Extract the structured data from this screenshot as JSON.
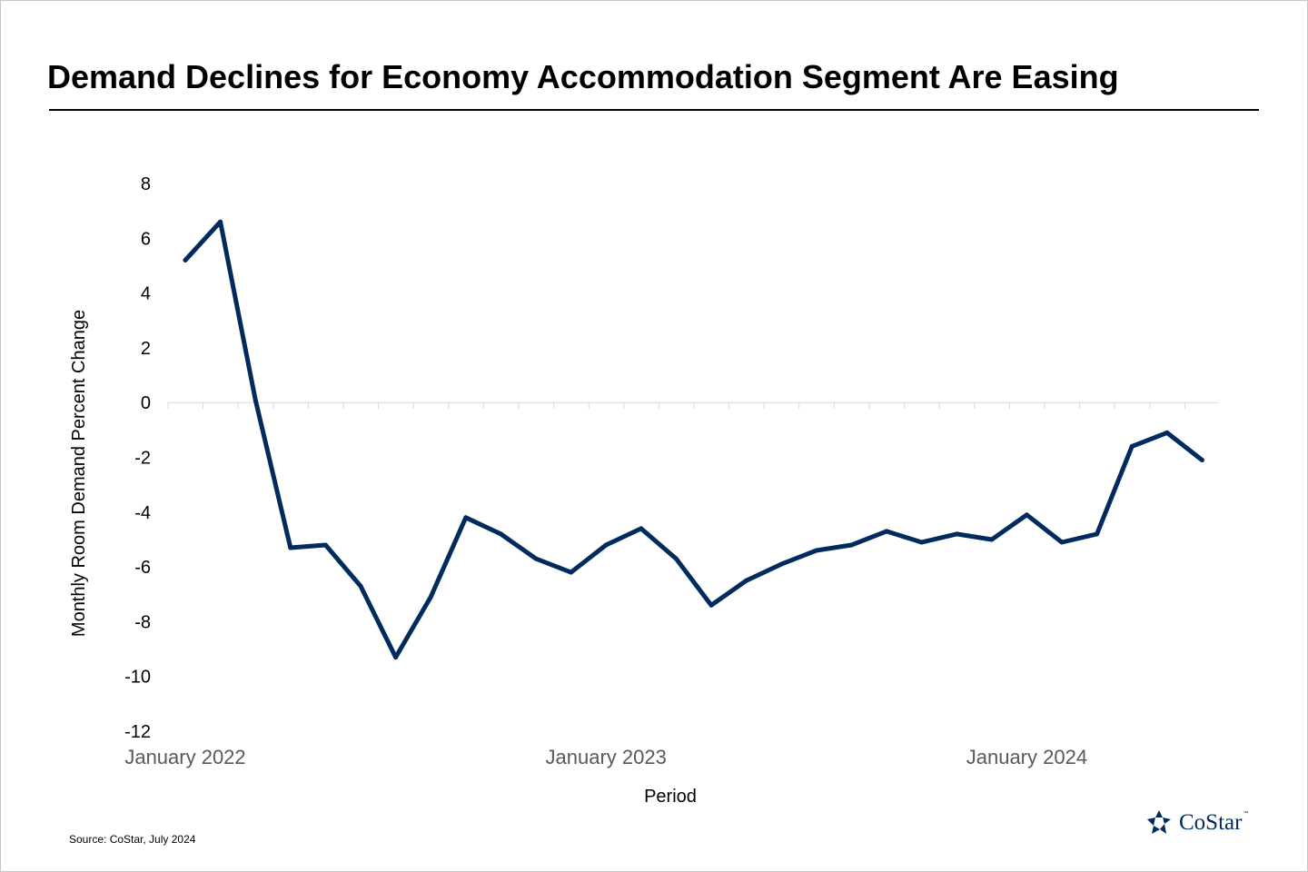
{
  "title": "Demand Declines for Economy Accommodation Segment Are Easing",
  "source": "Source: CoStar, July 2024",
  "logo": {
    "text": "CoStar",
    "tm": "™",
    "icon": "costar-star-icon"
  },
  "colors": {
    "line": "#002b5c",
    "grid": "#d9d9d9",
    "axis_text": "#595959"
  },
  "chart_data": {
    "type": "line",
    "title": "Demand Declines for Economy Accommodation Segment Are Easing",
    "xlabel": "Period",
    "ylabel": "Monthly Room Demand Percent Change",
    "ylim": [
      -12,
      8
    ],
    "yticks": [
      "8",
      "6",
      "4",
      "2",
      "0",
      "-2",
      "-4",
      "-6",
      "-8",
      "-10",
      "-12"
    ],
    "xtick_labels": [
      {
        "label": "January 2022",
        "index": 0
      },
      {
        "label": "January 2023",
        "index": 12
      },
      {
        "label": "January 2024",
        "index": 24
      }
    ],
    "grid": false,
    "series": [
      {
        "values": [
          5.2,
          6.6,
          0.1,
          -5.3,
          -5.2,
          -6.7,
          -9.3,
          -7.1,
          -4.2,
          -4.8,
          -5.7,
          -6.2,
          -5.2,
          -4.6,
          -5.7,
          -7.4,
          -6.5,
          -5.9,
          -5.4,
          -5.2,
          -4.7,
          -5.1,
          -4.8,
          -5.0,
          -4.1,
          -5.1,
          -4.8,
          -1.6,
          -1.1,
          -2.1
        ]
      }
    ]
  }
}
